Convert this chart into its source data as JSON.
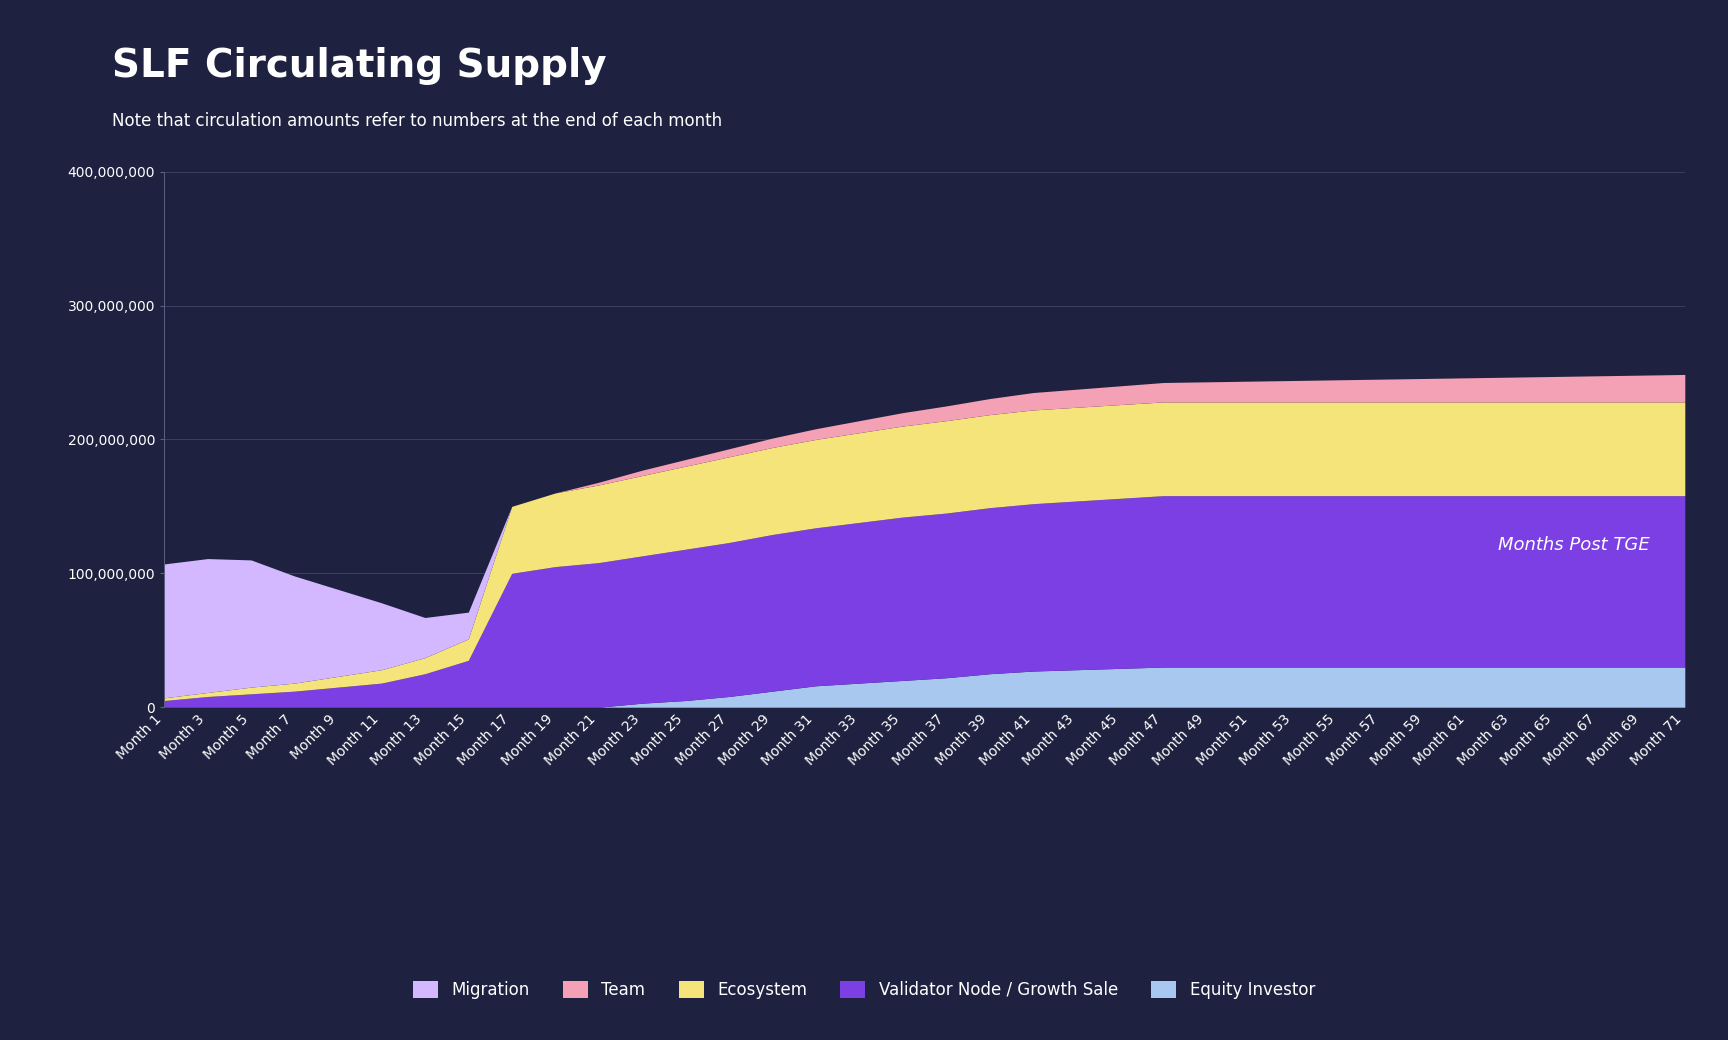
{
  "title": "SLF Circulating Supply",
  "subtitle": "Note that circulation amounts refer to numbers at the end of each month",
  "xlabel_note": "Months Post TGE",
  "background_color": "#1e2240",
  "text_color": "#ffffff",
  "grid_color": "#3a4060",
  "months": [
    1,
    3,
    5,
    7,
    9,
    11,
    13,
    15,
    17,
    19,
    21,
    23,
    25,
    27,
    29,
    31,
    33,
    35,
    37,
    39,
    41,
    43,
    45,
    47,
    49,
    51,
    53,
    55,
    57,
    59,
    61,
    63,
    65,
    67,
    69,
    71
  ],
  "stack_order": [
    "Equity Investor",
    "Validator Node / Growth Sale",
    "Ecosystem",
    "Team",
    "Migration"
  ],
  "series": {
    "Equity Investor": {
      "color": "#a8c8f0",
      "data": [
        0,
        0,
        0,
        0,
        0,
        0,
        0,
        0,
        0,
        0,
        0,
        3000000,
        5000000,
        8000000,
        12000000,
        16000000,
        18000000,
        20000000,
        22000000,
        25000000,
        27000000,
        28000000,
        29000000,
        30000000,
        30000000,
        30000000,
        30000000,
        30000000,
        30000000,
        30000000,
        30000000,
        30000000,
        30000000,
        30000000,
        30000000,
        30000000
      ]
    },
    "Validator Node / Growth Sale": {
      "color": "#7b3fe4",
      "data": [
        5000000,
        8000000,
        10000000,
        12000000,
        15000000,
        18000000,
        25000000,
        35000000,
        100000000,
        105000000,
        108000000,
        110000000,
        113000000,
        115000000,
        117000000,
        118000000,
        120000000,
        122000000,
        123000000,
        124000000,
        125000000,
        126000000,
        127000000,
        128000000,
        128000000,
        128000000,
        128000000,
        128000000,
        128000000,
        128000000,
        128000000,
        128000000,
        128000000,
        128000000,
        128000000,
        128000000
      ]
    },
    "Ecosystem": {
      "color": "#f5e47a",
      "data": [
        2000000,
        3000000,
        5000000,
        6000000,
        8000000,
        10000000,
        12000000,
        16000000,
        50000000,
        55000000,
        58000000,
        60000000,
        62000000,
        64000000,
        65000000,
        66000000,
        67000000,
        68000000,
        69000000,
        69500000,
        70000000,
        70000000,
        70000000,
        70000000,
        70000000,
        70000000,
        70000000,
        70000000,
        70000000,
        70000000,
        70000000,
        70000000,
        70000000,
        70000000,
        70000000,
        70000000
      ]
    },
    "Team": {
      "color": "#f4a0b5",
      "data": [
        0,
        0,
        0,
        0,
        0,
        0,
        0,
        0,
        0,
        0,
        2000000,
        4000000,
        5000000,
        6000000,
        7000000,
        8000000,
        9000000,
        10000000,
        11000000,
        12000000,
        13000000,
        13500000,
        14000000,
        14500000,
        15000000,
        15500000,
        16000000,
        16500000,
        17000000,
        17500000,
        18000000,
        18500000,
        19000000,
        19500000,
        20000000,
        20500000
      ]
    },
    "Migration": {
      "color": "#d4b8ff",
      "data": [
        100000000,
        100000000,
        95000000,
        80000000,
        65000000,
        50000000,
        30000000,
        20000000,
        0,
        0,
        0,
        0,
        0,
        0,
        0,
        0,
        0,
        0,
        0,
        0,
        0,
        0,
        0,
        0,
        0,
        0,
        0,
        0,
        0,
        0,
        0,
        0,
        0,
        0,
        0,
        0
      ]
    }
  },
  "ylim": [
    0,
    400000000
  ],
  "yticks": [
    0,
    100000000,
    200000000,
    300000000,
    400000000
  ],
  "title_fontsize": 28,
  "subtitle_fontsize": 12,
  "tick_fontsize": 10,
  "legend_fontsize": 12
}
